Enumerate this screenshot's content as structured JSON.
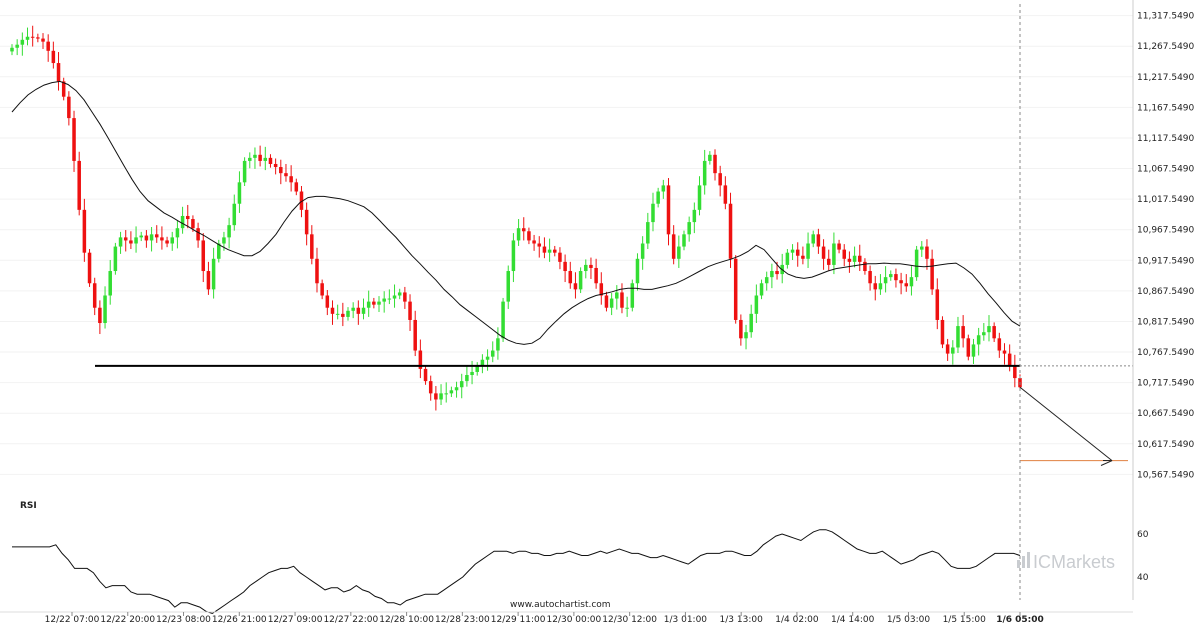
{
  "chart_data": [
    {
      "type": "candlestick",
      "y_ticks": [
        "11,317.5490",
        "11,267.5490",
        "11,217.5490",
        "11,167.5490",
        "11,117.5490",
        "11,067.5490",
        "11,017.5490",
        "10,967.5490",
        "10,917.5490",
        "10,867.5490",
        "10,817.5490",
        "10,767.5490",
        "10,717.5490",
        "10,667.5490",
        "10,617.5490",
        "10,567.5490"
      ],
      "ylim": [
        10560,
        11330
      ],
      "colors": {
        "up": "#33dd33",
        "down": "#ee1111",
        "ma": "#111111",
        "level": "#000000",
        "target": "#e08040"
      },
      "closes": [
        11265,
        11270,
        11278,
        11283,
        11282,
        11280,
        11275,
        11260,
        11240,
        11210,
        11185,
        11150,
        11080,
        11000,
        10930,
        10880,
        10840,
        10815,
        10860,
        10900,
        10940,
        10955,
        10950,
        10945,
        10955,
        10958,
        10950,
        10960,
        10955,
        10950,
        10945,
        10955,
        10970,
        10990,
        10985,
        10970,
        10950,
        10900,
        10870,
        10920,
        10945,
        10955,
        10975,
        11010,
        11045,
        11080,
        11085,
        11090,
        11080,
        11085,
        11075,
        11070,
        11060,
        11055,
        11045,
        11030,
        11000,
        10960,
        10920,
        10880,
        10860,
        10840,
        10830,
        10830,
        10825,
        10835,
        10840,
        10830,
        10840,
        10850,
        10845,
        10850,
        10855,
        10855,
        10860,
        10865,
        10850,
        10820,
        10770,
        10740,
        10720,
        10700,
        10690,
        10700,
        10700,
        10705,
        10710,
        10720,
        10730,
        10735,
        10745,
        10755,
        10760,
        10770,
        10790,
        10850,
        10900,
        10950,
        10970,
        10965,
        10950,
        10945,
        10940,
        10930,
        10935,
        10930,
        10915,
        10900,
        10880,
        10870,
        10900,
        10910,
        10905,
        10880,
        10860,
        10840,
        10855,
        10865,
        10840,
        10840,
        10880,
        10920,
        10945,
        10980,
        11010,
        11030,
        11040,
        10960,
        10920,
        10940,
        10960,
        10980,
        11000,
        11040,
        11080,
        11090,
        11060,
        11040,
        11010,
        10920,
        10820,
        10790,
        10800,
        10830,
        10860,
        10880,
        10890,
        10900,
        10895,
        10910,
        10930,
        10935,
        10925,
        10920,
        10945,
        10960,
        10940,
        10920,
        10910,
        10945,
        10935,
        10920,
        10915,
        10925,
        10915,
        10900,
        10880,
        10870,
        10880,
        10890,
        10895,
        10885,
        10880,
        10875,
        10890,
        10935,
        10940,
        10920,
        10870,
        10820,
        10780,
        10765,
        10775,
        10810,
        10790,
        10760,
        10780,
        10795,
        10800,
        10810,
        10790,
        10770,
        10765,
        10745,
        10725,
        10710
      ],
      "ma": [
        11160,
        11175,
        11188,
        11197,
        11204,
        11208,
        11210,
        11205,
        11195,
        11180,
        11160,
        11140,
        11118,
        11095,
        11072,
        11050,
        11030,
        11015,
        11005,
        10995,
        10988,
        10980,
        10973,
        10965,
        10958,
        10950,
        10942,
        10935,
        10930,
        10925,
        10925,
        10932,
        10945,
        10960,
        10980,
        10998,
        11012,
        11020,
        11022,
        11022,
        11020,
        11018,
        11015,
        11010,
        11005,
        10995,
        10982,
        10968,
        10955,
        10940,
        10925,
        10912,
        10898,
        10885,
        10870,
        10858,
        10845,
        10835,
        10825,
        10815,
        10805,
        10795,
        10787,
        10782,
        10780,
        10782,
        10790,
        10805,
        10818,
        10830,
        10840,
        10848,
        10855,
        10860,
        10863,
        10866,
        10870,
        10872,
        10872,
        10870,
        10870,
        10873,
        10876,
        10880,
        10886,
        10893,
        10900,
        10907,
        10912,
        10916,
        10920,
        10925,
        10932,
        10942,
        10935,
        10920,
        10905,
        10895,
        10890,
        10888,
        10890,
        10895,
        10900,
        10904,
        10906,
        10908,
        10910,
        10912,
        10912,
        10913,
        10912,
        10912,
        10910,
        10908,
        10907,
        10908,
        10910,
        10912,
        10913,
        10905,
        10895,
        10880,
        10863,
        10848,
        10832,
        10818,
        10810
      ],
      "level": 10745,
      "target": 10590,
      "rsi_scale": [
        60,
        40
      ],
      "rsi": [
        54,
        54,
        54,
        54,
        54,
        54,
        54,
        55,
        51,
        48,
        44,
        44,
        44,
        42,
        38,
        35,
        36,
        36,
        36,
        33,
        32,
        32,
        32,
        31,
        30,
        29,
        26,
        28,
        28,
        27,
        26,
        24,
        23,
        25,
        27,
        29,
        31,
        33,
        36,
        38,
        40,
        42,
        43,
        44,
        44,
        45,
        42,
        40,
        38,
        36,
        34,
        35,
        35,
        33,
        34,
        36,
        34,
        33,
        31,
        30,
        28,
        28,
        27,
        29,
        30,
        31,
        32,
        32,
        32,
        34,
        36,
        38,
        40,
        43,
        46,
        48,
        50,
        52,
        52,
        52,
        51,
        52,
        52,
        51,
        51,
        50,
        50,
        51,
        51,
        52,
        51,
        50,
        50,
        51,
        52,
        51,
        52,
        53,
        52,
        51,
        51,
        50,
        49,
        49,
        50,
        49,
        48,
        47,
        46,
        48,
        50,
        51,
        51,
        51,
        52,
        52,
        51,
        50,
        50,
        52,
        55,
        57,
        59,
        60,
        59,
        58,
        57,
        59,
        61,
        62,
        62,
        61,
        59,
        57,
        55,
        53,
        52,
        51,
        51,
        52,
        50,
        48,
        46,
        47,
        48,
        50,
        51,
        52,
        51,
        48,
        45,
        44,
        44,
        44,
        45,
        47,
        49,
        51,
        51,
        51,
        51,
        50
      ],
      "x_ticks": [
        "12/22 07:00",
        "12/22 20:00",
        "12/23 08:00",
        "12/26 21:00",
        "12/27 09:00",
        "12/27 22:00",
        "12/28 10:00",
        "12/28 23:00",
        "12/29 11:00",
        "12/30 00:00",
        "12/30 12:00",
        "1/3 01:00",
        "1/3 13:00",
        "1/4 02:00",
        "1/4 14:00",
        "1/5 03:00",
        "1/5 15:00",
        "1/6 05:00"
      ]
    }
  ],
  "rsi_title": "RSI",
  "rsi_ticks": [
    "60",
    "40"
  ],
  "credit": "www.autochartist.com",
  "brand": "ICMarkets"
}
